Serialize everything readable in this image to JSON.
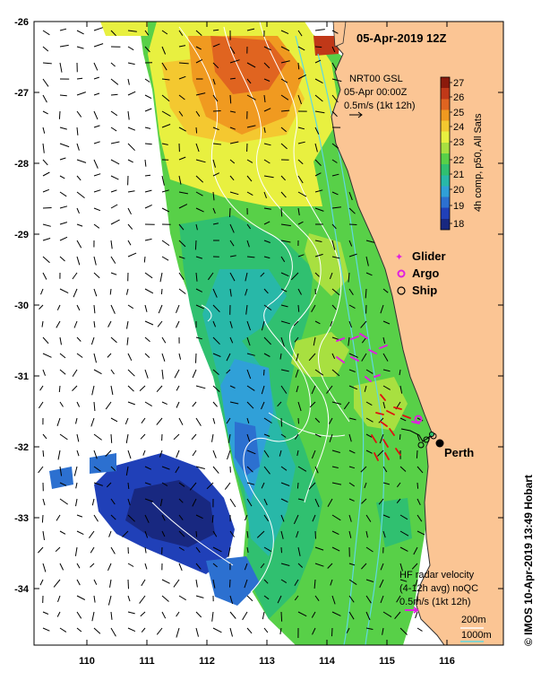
{
  "title": "05-Apr-2019 12Z",
  "product": {
    "line1": "NRT00 GSL",
    "line2": "05-Apr 00:00Z",
    "line3": "0.5m/s (1kt 12h)"
  },
  "colorbar": {
    "label": "4h comp, p50, All Sats",
    "ticks": [
      "27",
      "26",
      "25",
      "24",
      "23",
      "22",
      "21",
      "20",
      "19",
      "18"
    ],
    "colors": [
      "#8b1a0c",
      "#c03818",
      "#e06420",
      "#f09a20",
      "#f4c830",
      "#e8f040",
      "#a8e040",
      "#58d048",
      "#30c070",
      "#28b8a8",
      "#30a0d8",
      "#2c70d0",
      "#2040b8",
      "#182880"
    ]
  },
  "legend": {
    "glider": "Glider",
    "argo": "Argo",
    "ship": "Ship",
    "colors": {
      "glider": "#e020e0",
      "argo": "#e020e0",
      "ship": "#000000",
      "hf": "#e020e0"
    }
  },
  "city": "Perth",
  "hf": {
    "line1": "HF radar velocity",
    "line2": "(4-12h avg) noQC",
    "line3": "0.5m/s (1kt 12h)"
  },
  "isobaths": {
    "a": "200m",
    "b": "1000m"
  },
  "y_ticks": [
    "-26",
    "-27",
    "-28",
    "-29",
    "-30",
    "-31",
    "-32",
    "-33",
    "-34"
  ],
  "x_ticks": [
    "110",
    "111",
    "112",
    "113",
    "114",
    "115",
    "116"
  ],
  "credit": "© IMOS 10-Apr-2019 13:49 Hobart",
  "colors": {
    "land": "#fbc594",
    "coast": "#303030",
    "contour": "#ffffff",
    "frame": "#000000"
  }
}
